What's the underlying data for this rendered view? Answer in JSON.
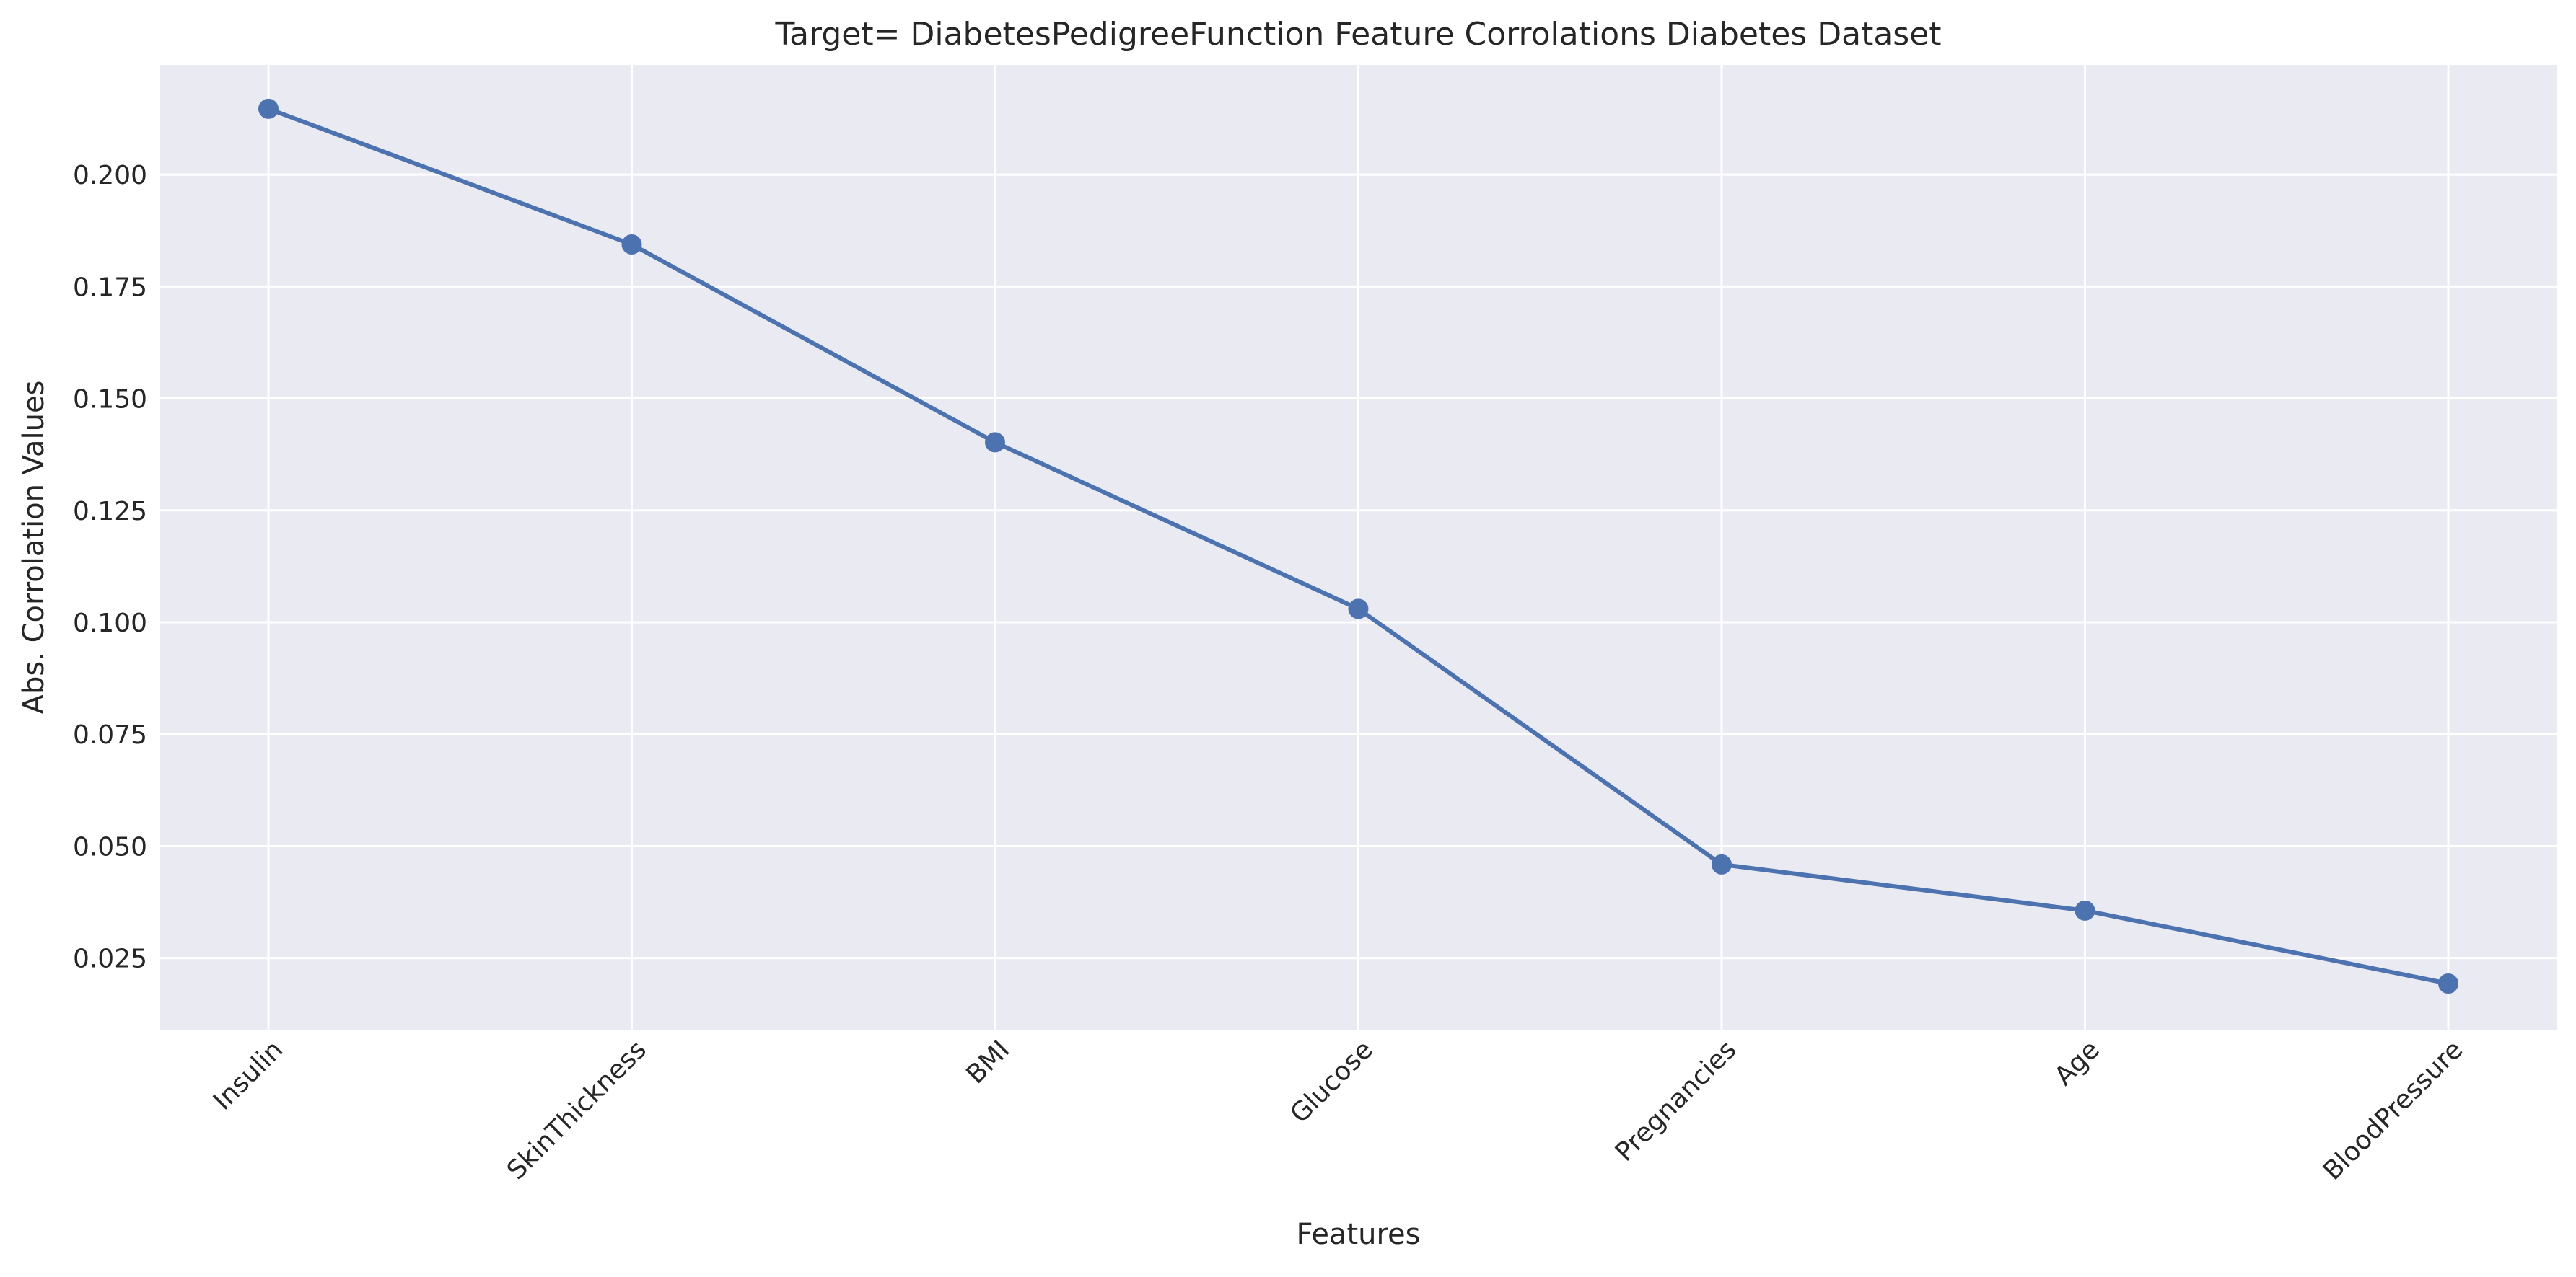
{
  "chart_data": {
    "type": "line",
    "title": "Target= DiabetesPedigreeFunction Feature Corrolations Diabetes Dataset",
    "xlabel": "Features",
    "ylabel": "Abs. Corrolation Values",
    "categories": [
      "Insulin",
      "SkinThickness",
      "BMI",
      "Glucose",
      "Pregnancies",
      "Age",
      "BloodPressure"
    ],
    "series": [
      {
        "values": [
          0.2147,
          0.1844,
          0.1402,
          0.103,
          0.0459,
          0.0356,
          0.0193
        ]
      }
    ],
    "ylim": [
      0.009,
      0.2245
    ],
    "yticks": [
      0.025,
      0.05,
      0.075,
      0.1,
      0.125,
      0.15,
      0.175,
      0.2
    ],
    "ytick_labels": [
      "0.025",
      "0.050",
      "0.075",
      "0.100",
      "0.125",
      "0.150",
      "0.175",
      "0.200"
    ],
    "grid": true,
    "legend": "none",
    "colors": {
      "plot_background": "#eaeaf2",
      "grid": "#ffffff",
      "line": "#4c72b0",
      "text": "#262626"
    }
  }
}
